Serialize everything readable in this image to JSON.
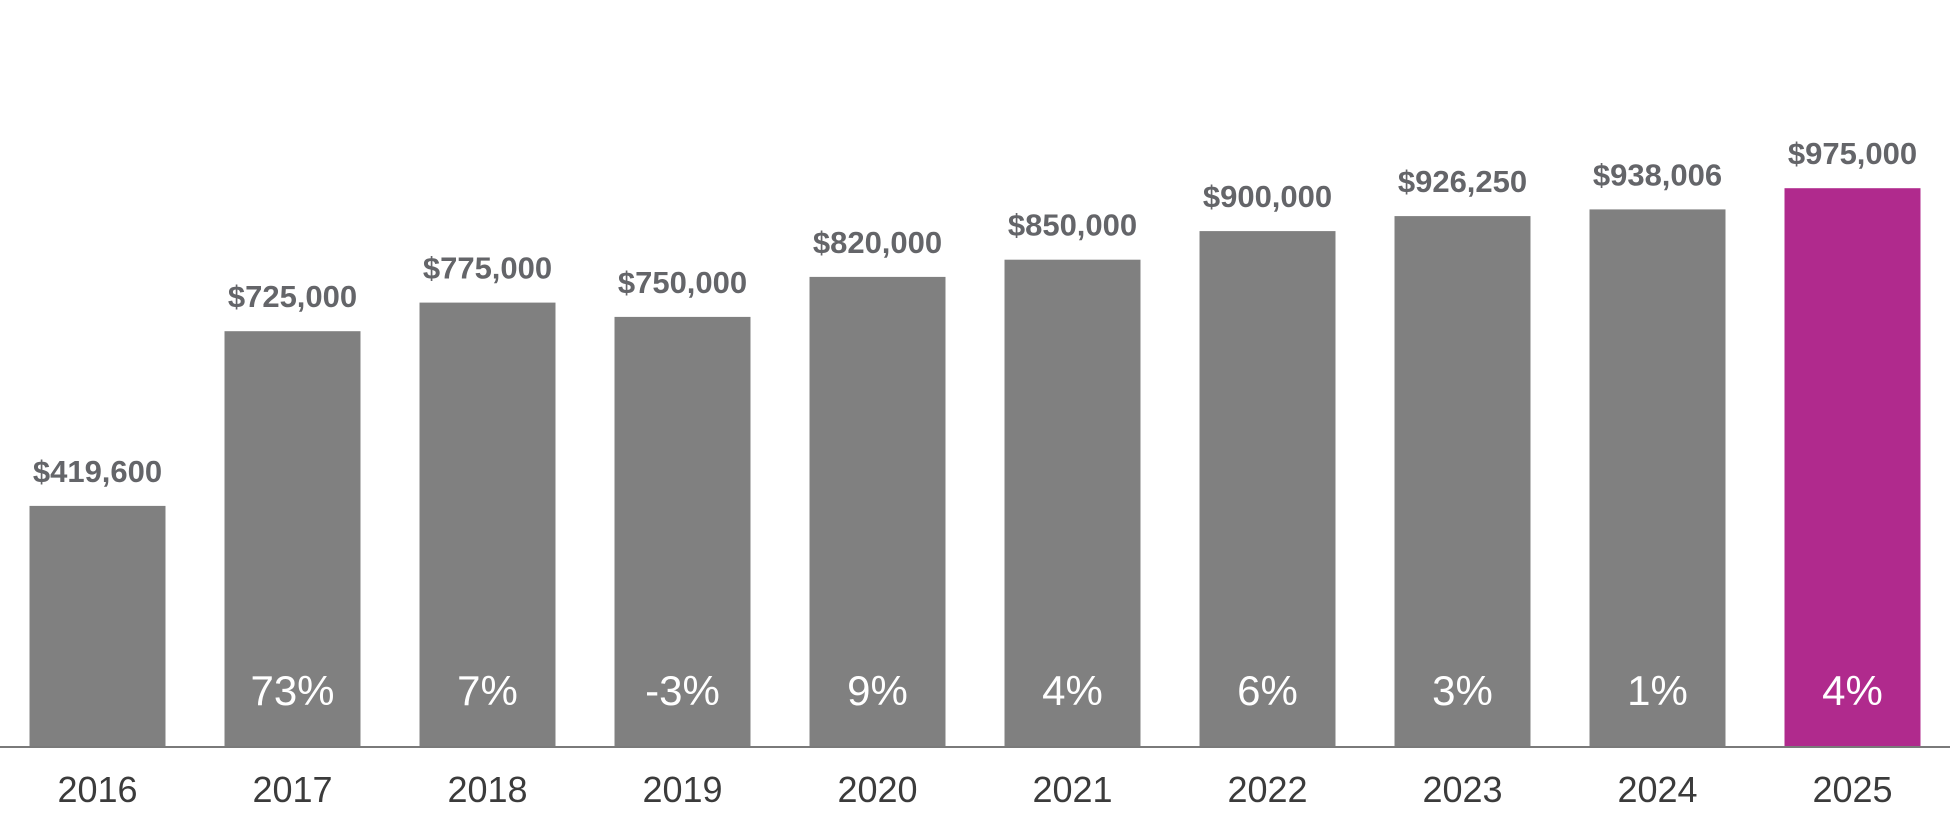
{
  "chart_data": {
    "type": "bar",
    "title": "",
    "xlabel": "",
    "ylabel": "",
    "ylim": [
      0,
      1000000
    ],
    "grid": false,
    "categories": [
      "2016",
      "2017",
      "2018",
      "2019",
      "2020",
      "2021",
      "2022",
      "2023",
      "2024",
      "2025"
    ],
    "values": [
      419600,
      725000,
      775000,
      750000,
      820000,
      850000,
      900000,
      926250,
      938006,
      975000
    ],
    "value_labels": [
      "$419,600",
      "$725,000",
      "$775,000",
      "$750,000",
      "$820,000",
      "$850,000",
      "$900,000",
      "$926,250",
      "$938,006",
      "$975,000"
    ],
    "change_labels": [
      "",
      "73%",
      "7%",
      "-3%",
      "9%",
      "4%",
      "6%",
      "3%",
      "1%",
      "4%"
    ],
    "highlight_index": 9,
    "colors": {
      "bar": "#808080",
      "highlight_bar": "#b02a8d",
      "value_label": "#646569",
      "change_label": "#ffffff",
      "axis": "#7a7a7a",
      "tick_label": "#3b3b3b"
    }
  }
}
